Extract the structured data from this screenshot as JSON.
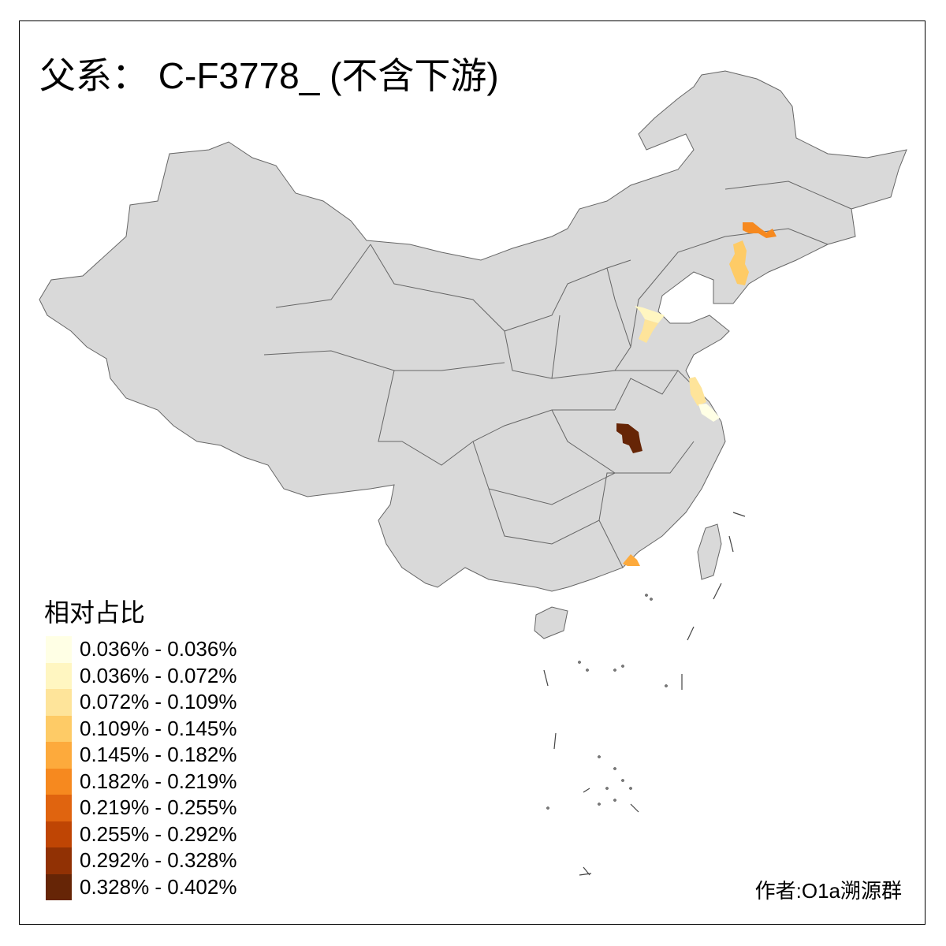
{
  "title": "父系： C-F3778_ (不含下游)",
  "legend": {
    "title": "相对占比",
    "items": [
      {
        "label": "0.036% - 0.036%",
        "color": "#FFFFE5"
      },
      {
        "label": "0.036% - 0.072%",
        "color": "#FFF6C1"
      },
      {
        "label": "0.072% - 0.109%",
        "color": "#FEE49A"
      },
      {
        "label": "0.109% - 0.145%",
        "color": "#FECB66"
      },
      {
        "label": "0.145% - 0.182%",
        "color": "#FDAA3C"
      },
      {
        "label": "0.182% - 0.219%",
        "color": "#F6891F"
      },
      {
        "label": "0.219% - 0.255%",
        "color": "#E0640F"
      },
      {
        "label": "0.255% - 0.292%",
        "color": "#BF4504"
      },
      {
        "label": "0.292% - 0.328%",
        "color": "#913104"
      },
      {
        "label": "0.328% - 0.402%",
        "color": "#662506"
      }
    ]
  },
  "map": {
    "base_color": "#D9D9D9",
    "border_color": "#666666",
    "highlighted_regions": [
      {
        "class_index": 9
      },
      {
        "class_index": 5
      },
      {
        "class_index": 3
      },
      {
        "class_index": 1
      },
      {
        "class_index": 2
      },
      {
        "class_index": 2
      },
      {
        "class_index": 0
      },
      {
        "class_index": 4
      }
    ]
  },
  "author": "作者:O1a溯源群"
}
